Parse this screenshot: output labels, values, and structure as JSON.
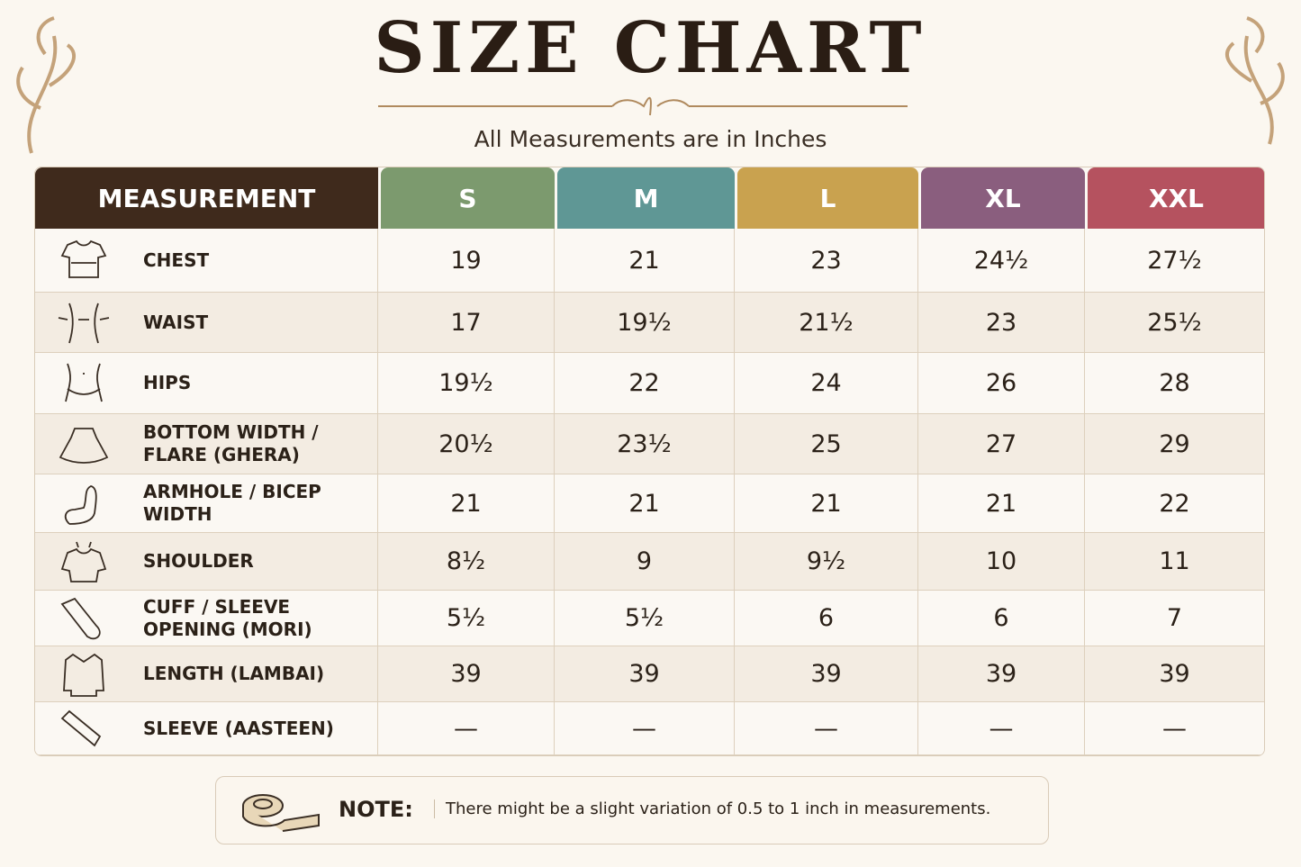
{
  "header": {
    "title": "SIZE CHART",
    "subtitle": "All Measurements are in Inches"
  },
  "table": {
    "columns": [
      "MEASUREMENT",
      "S",
      "M",
      "L",
      "XL",
      "XXL"
    ],
    "rows": [
      [
        "CHEST",
        "19",
        "21",
        "23",
        "24½",
        "27½"
      ],
      [
        "WAIST",
        "17",
        "19½",
        "21½",
        "23",
        "25½"
      ],
      [
        "HIPS",
        "19½",
        "22",
        "24",
        "26",
        "28"
      ],
      [
        "BOTTOM WIDTH / FLARE (GHERA)",
        "20½",
        "23½",
        "25",
        "27",
        "29"
      ],
      [
        "ARMHOLE / BICEP WIDTH",
        "21",
        "21",
        "21",
        "21",
        "22"
      ],
      [
        "SHOULDER",
        "8½",
        "9",
        "9½",
        "10",
        "11"
      ],
      [
        "CUFF / SLEEVE OPENING (MORI)",
        "5½",
        "5½",
        "6",
        "6",
        "7"
      ],
      [
        "LENGTH (LAMBAI)",
        "39",
        "39",
        "39",
        "39",
        "39"
      ],
      [
        "SLEEVE (AASTEEN)",
        "—",
        "—",
        "—",
        "—",
        "—"
      ]
    ]
  },
  "note": {
    "label": "NOTE:",
    "text": "There might be a slight variation of 0.5 to 1 inch in measurements."
  }
}
